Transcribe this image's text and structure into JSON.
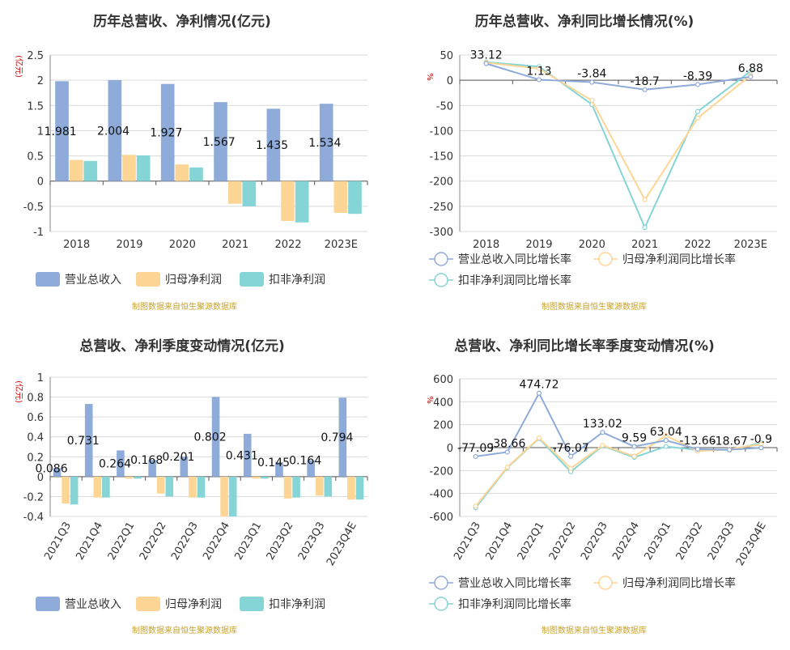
{
  "colors": {
    "revenue": "#8eabd9",
    "netprofit": "#fdd594",
    "deducted": "#85d4d6",
    "source": "#c9a227",
    "unit": "#cc0000",
    "title": "#333333"
  },
  "source_note": "制图数据来自恒生聚源数据库",
  "chart_data": [
    {
      "type": "bar",
      "title": "历年总营收、净利情况(亿元)",
      "ylabel": "(亿元)",
      "categories": [
        "2018",
        "2019",
        "2020",
        "2021",
        "2022",
        "2023E"
      ],
      "ylim": [
        -1,
        2.5
      ],
      "yticks": [
        "2.5",
        "2",
        "1.5",
        "1",
        "0.5",
        "0",
        "-0.5",
        "-1"
      ],
      "ytick_values": [
        2.5,
        2,
        1.5,
        1,
        0.5,
        0,
        -0.5,
        -1
      ],
      "series": [
        {
          "name": "营业总收入",
          "values": [
            1.981,
            2.004,
            1.927,
            1.567,
            1.435,
            1.534
          ]
        },
        {
          "name": "归母净利润",
          "values": [
            0.42,
            0.52,
            0.33,
            -0.45,
            -0.79,
            -0.63
          ]
        },
        {
          "name": "扣非净利润",
          "values": [
            0.4,
            0.51,
            0.27,
            -0.5,
            -0.82,
            -0.65
          ]
        }
      ],
      "data_labels": [
        "1.981",
        "2.004",
        "1.927",
        "1.567",
        "1.435",
        "1.534"
      ],
      "legend": "bottom",
      "grid": true
    },
    {
      "type": "line",
      "title": "历年总营收、净利同比增长情况(%)",
      "ylabel": "%",
      "categories": [
        "2018",
        "2019",
        "2020",
        "2021",
        "2022",
        "2023E"
      ],
      "ylim": [
        -300,
        50
      ],
      "yticks": [
        "50",
        "0",
        "-50",
        "-100",
        "-150",
        "-200",
        "-250",
        "-300"
      ],
      "ytick_values": [
        50,
        0,
        -50,
        -100,
        -150,
        -200,
        -250,
        -300
      ],
      "series": [
        {
          "name": "营业总收入同比增长率",
          "values": [
            33.12,
            1.13,
            -3.84,
            -18.7,
            -8.39,
            6.88
          ]
        },
        {
          "name": "归母净利润同比增长率",
          "values": [
            35,
            23,
            -40,
            -237,
            -75,
            10
          ]
        },
        {
          "name": "扣非净利润同比增长率",
          "values": [
            36,
            27,
            -48,
            -292,
            -62,
            18
          ]
        }
      ],
      "data_labels": [
        "33.12",
        "1.13",
        "-3.84",
        "-18.7",
        "-8.39",
        "6.88"
      ],
      "legend": "bottom",
      "grid": true
    },
    {
      "type": "bar",
      "title": "总营收、净利季度变动情况(亿元)",
      "ylabel": "(亿元)",
      "categories": [
        "2021Q3",
        "2021Q4",
        "2022Q1",
        "2022Q2",
        "2022Q3",
        "2022Q4",
        "2023Q1",
        "2023Q2",
        "2023Q3",
        "2023Q4E"
      ],
      "ylim": [
        -0.4,
        1
      ],
      "yticks": [
        "1",
        "0.8",
        "0.6",
        "0.4",
        "0.2",
        "0",
        "-0.2",
        "-0.4"
      ],
      "ytick_values": [
        1,
        0.8,
        0.6,
        0.4,
        0.2,
        0,
        -0.2,
        -0.4
      ],
      "series": [
        {
          "name": "营业总收入",
          "values": [
            0.086,
            0.731,
            0.264,
            0.168,
            0.201,
            0.802,
            0.431,
            0.145,
            0.164,
            0.794
          ]
        },
        {
          "name": "归母净利润",
          "values": [
            -0.27,
            -0.21,
            -0.02,
            -0.17,
            -0.21,
            -0.4,
            -0.02,
            -0.22,
            -0.19,
            -0.23
          ]
        },
        {
          "name": "扣非净利润",
          "values": [
            -0.28,
            -0.21,
            -0.02,
            -0.2,
            -0.21,
            -0.4,
            -0.02,
            -0.21,
            -0.2,
            -0.23
          ]
        }
      ],
      "data_labels": [
        "0.086",
        "0.731",
        "0.264",
        "0.168",
        "0.201",
        "0.802",
        "0.431",
        "0.145",
        "0.164",
        "0.794"
      ],
      "legend": "bottom",
      "grid": true
    },
    {
      "type": "line",
      "title": "总营收、净利同比增长率季度变动情况(%)",
      "ylabel": "%",
      "categories": [
        "2021Q3",
        "2021Q4",
        "2022Q1",
        "2022Q2",
        "2022Q3",
        "2022Q4",
        "2023Q1",
        "2023Q2",
        "2023Q3",
        "2023Q4E"
      ],
      "ylim": [
        -600,
        600
      ],
      "yticks": [
        "600",
        "400",
        "200",
        "0",
        "-200",
        "-400",
        "-600"
      ],
      "ytick_values": [
        600,
        400,
        200,
        0,
        -200,
        -400,
        -600
      ],
      "series": [
        {
          "name": "营业总收入同比增长率",
          "values": [
            -77.09,
            -38.66,
            474.72,
            -76.07,
            133.02,
            9.59,
            63.04,
            -13.66,
            -18.67,
            -0.9
          ]
        },
        {
          "name": "归母净利润同比增长率",
          "values": [
            -510,
            -170,
            85,
            -180,
            20,
            -75,
            105,
            -30,
            -15,
            30
          ]
        },
        {
          "name": "扣非净利润同比增长率",
          "values": [
            -525,
            -175,
            80,
            -210,
            15,
            -85,
            10,
            -20,
            -20,
            40
          ]
        }
      ],
      "data_labels": [
        "-77.09",
        "-38.66",
        "474.72",
        "-76.07",
        "133.02",
        "9.59",
        "63.04",
        "-13.66",
        "-18.67",
        "-0.9"
      ],
      "legend": "bottom",
      "grid": true
    }
  ]
}
